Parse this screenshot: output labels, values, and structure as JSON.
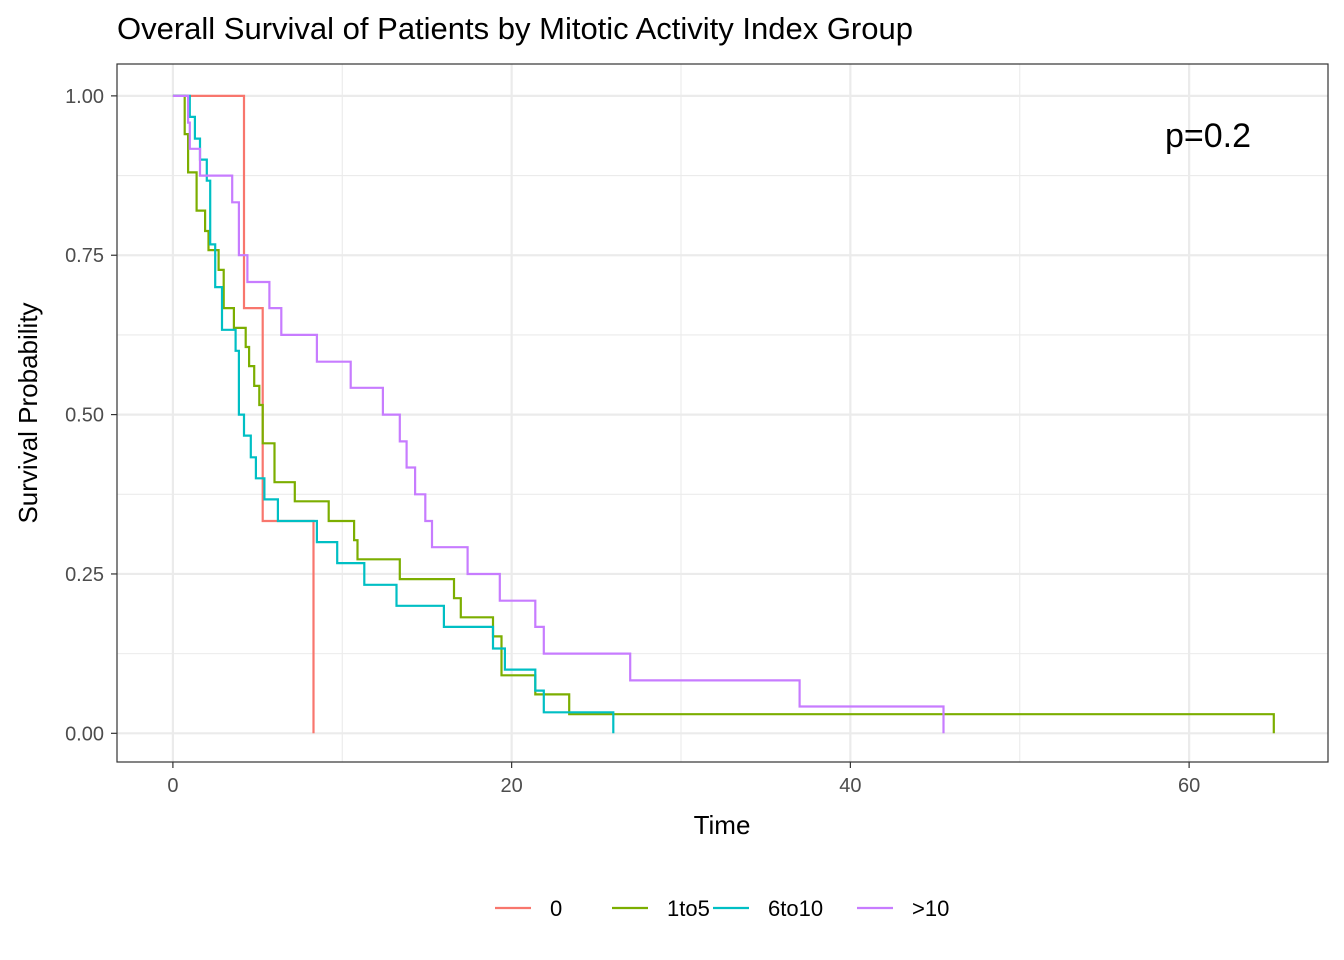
{
  "chart_data": {
    "type": "line",
    "subtype": "kaplan-meier-step",
    "title": "Overall Survival of Patients by Mitotic Activity Index Group",
    "xlabel": "Time",
    "ylabel": "Survival Probability",
    "xlim": [
      -3.3,
      68.2
    ],
    "ylim": [
      -0.045,
      1.05
    ],
    "xticks": [
      0,
      20,
      40,
      60
    ],
    "xtick_labels": [
      "0",
      "20",
      "40",
      "60"
    ],
    "yticks": [
      0,
      0.25,
      0.5,
      0.75,
      1.0
    ],
    "ytick_labels": [
      "0.00",
      "0.25",
      "0.50",
      "0.75",
      "1.00"
    ],
    "grid": true,
    "legend_position": "bottom",
    "annotation": "p=0.2",
    "series": [
      {
        "name": "0",
        "color": "#F8766D",
        "points": [
          [
            0,
            1.0
          ],
          [
            4.2,
            1.0
          ],
          [
            4.2,
            0.667
          ],
          [
            5.3,
            0.667
          ],
          [
            5.3,
            0.333
          ],
          [
            8.3,
            0.333
          ],
          [
            8.3,
            0.0
          ]
        ]
      },
      {
        "name": "1to5",
        "color": "#7CAE00",
        "points": [
          [
            0,
            1.0
          ],
          [
            0.7,
            1.0
          ],
          [
            0.7,
            0.94
          ],
          [
            0.9,
            0.94
          ],
          [
            0.9,
            0.88
          ],
          [
            1.4,
            0.88
          ],
          [
            1.4,
            0.82
          ],
          [
            1.9,
            0.82
          ],
          [
            1.9,
            0.788
          ],
          [
            2.1,
            0.788
          ],
          [
            2.1,
            0.758
          ],
          [
            2.7,
            0.758
          ],
          [
            2.7,
            0.727
          ],
          [
            3.0,
            0.727
          ],
          [
            3.0,
            0.667
          ],
          [
            3.6,
            0.667
          ],
          [
            3.6,
            0.636
          ],
          [
            4.3,
            0.636
          ],
          [
            4.3,
            0.606
          ],
          [
            4.5,
            0.606
          ],
          [
            4.5,
            0.576
          ],
          [
            4.8,
            0.576
          ],
          [
            4.8,
            0.545
          ],
          [
            5.1,
            0.545
          ],
          [
            5.1,
            0.515
          ],
          [
            5.3,
            0.515
          ],
          [
            5.3,
            0.455
          ],
          [
            6.0,
            0.455
          ],
          [
            6.0,
            0.394
          ],
          [
            7.2,
            0.394
          ],
          [
            7.2,
            0.364
          ],
          [
            9.2,
            0.364
          ],
          [
            9.2,
            0.333
          ],
          [
            10.7,
            0.333
          ],
          [
            10.7,
            0.303
          ],
          [
            10.9,
            0.303
          ],
          [
            10.9,
            0.273
          ],
          [
            13.4,
            0.273
          ],
          [
            13.4,
            0.242
          ],
          [
            16.6,
            0.242
          ],
          [
            16.6,
            0.212
          ],
          [
            17.0,
            0.212
          ],
          [
            17.0,
            0.182
          ],
          [
            18.9,
            0.182
          ],
          [
            18.9,
            0.152
          ],
          [
            19.4,
            0.152
          ],
          [
            19.4,
            0.091
          ],
          [
            21.4,
            0.091
          ],
          [
            21.4,
            0.061
          ],
          [
            23.4,
            0.061
          ],
          [
            23.4,
            0.03
          ],
          [
            65.0,
            0.03
          ],
          [
            65.0,
            0.0
          ]
        ]
      },
      {
        "name": "6to10",
        "color": "#00BFC4",
        "points": [
          [
            0,
            1.0
          ],
          [
            1.0,
            1.0
          ],
          [
            1.0,
            0.967
          ],
          [
            1.3,
            0.967
          ],
          [
            1.3,
            0.933
          ],
          [
            1.6,
            0.933
          ],
          [
            1.6,
            0.9
          ],
          [
            2.0,
            0.9
          ],
          [
            2.0,
            0.867
          ],
          [
            2.2,
            0.867
          ],
          [
            2.2,
            0.767
          ],
          [
            2.5,
            0.767
          ],
          [
            2.5,
            0.7
          ],
          [
            2.9,
            0.7
          ],
          [
            2.9,
            0.633
          ],
          [
            3.7,
            0.633
          ],
          [
            3.7,
            0.6
          ],
          [
            3.9,
            0.6
          ],
          [
            3.9,
            0.5
          ],
          [
            4.2,
            0.5
          ],
          [
            4.2,
            0.467
          ],
          [
            4.6,
            0.467
          ],
          [
            4.6,
            0.433
          ],
          [
            4.9,
            0.433
          ],
          [
            4.9,
            0.4
          ],
          [
            5.4,
            0.4
          ],
          [
            5.4,
            0.367
          ],
          [
            6.2,
            0.367
          ],
          [
            6.2,
            0.333
          ],
          [
            8.5,
            0.333
          ],
          [
            8.5,
            0.3
          ],
          [
            9.7,
            0.3
          ],
          [
            9.7,
            0.267
          ],
          [
            11.3,
            0.267
          ],
          [
            11.3,
            0.233
          ],
          [
            13.2,
            0.233
          ],
          [
            13.2,
            0.2
          ],
          [
            16.0,
            0.2
          ],
          [
            16.0,
            0.167
          ],
          [
            18.9,
            0.167
          ],
          [
            18.9,
            0.133
          ],
          [
            19.6,
            0.133
          ],
          [
            19.6,
            0.1
          ],
          [
            21.4,
            0.1
          ],
          [
            21.4,
            0.067
          ],
          [
            21.9,
            0.067
          ],
          [
            21.9,
            0.033
          ],
          [
            26.0,
            0.033
          ],
          [
            26.0,
            0.0
          ]
        ]
      },
      {
        "name": ">10",
        "color": "#C77CFF",
        "points": [
          [
            0,
            1.0
          ],
          [
            0.9,
            1.0
          ],
          [
            0.9,
            0.958
          ],
          [
            1.0,
            0.958
          ],
          [
            1.0,
            0.917
          ],
          [
            1.6,
            0.917
          ],
          [
            1.6,
            0.875
          ],
          [
            3.5,
            0.875
          ],
          [
            3.5,
            0.833
          ],
          [
            3.9,
            0.833
          ],
          [
            3.9,
            0.75
          ],
          [
            4.4,
            0.75
          ],
          [
            4.4,
            0.708
          ],
          [
            5.7,
            0.708
          ],
          [
            5.7,
            0.667
          ],
          [
            6.4,
            0.667
          ],
          [
            6.4,
            0.625
          ],
          [
            8.5,
            0.625
          ],
          [
            8.5,
            0.583
          ],
          [
            10.5,
            0.583
          ],
          [
            10.5,
            0.542
          ],
          [
            12.4,
            0.542
          ],
          [
            12.4,
            0.5
          ],
          [
            13.4,
            0.5
          ],
          [
            13.4,
            0.458
          ],
          [
            13.8,
            0.458
          ],
          [
            13.8,
            0.417
          ],
          [
            14.3,
            0.417
          ],
          [
            14.3,
            0.375
          ],
          [
            14.9,
            0.375
          ],
          [
            14.9,
            0.333
          ],
          [
            15.3,
            0.333
          ],
          [
            15.3,
            0.292
          ],
          [
            17.4,
            0.292
          ],
          [
            17.4,
            0.25
          ],
          [
            19.3,
            0.25
          ],
          [
            19.3,
            0.208
          ],
          [
            21.4,
            0.208
          ],
          [
            21.4,
            0.167
          ],
          [
            21.9,
            0.167
          ],
          [
            21.9,
            0.125
          ],
          [
            27.0,
            0.125
          ],
          [
            27.0,
            0.083
          ],
          [
            37.0,
            0.083
          ],
          [
            37.0,
            0.042
          ],
          [
            45.5,
            0.042
          ],
          [
            45.5,
            0.0
          ]
        ]
      }
    ]
  }
}
